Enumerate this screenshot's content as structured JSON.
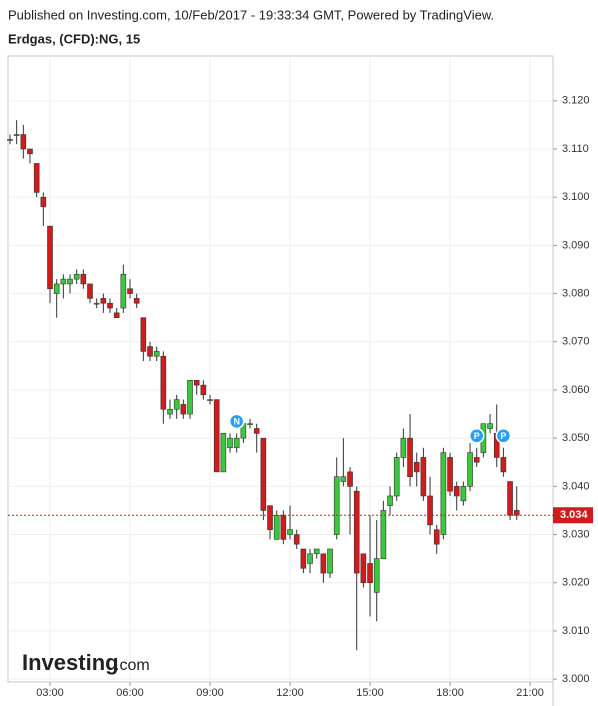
{
  "chart_data": {
    "type": "candlestick",
    "source": "Published on Investing.com, 10/Feb/2017 - 19:33:34 GMT, Powered by TradingView.",
    "title": "Erdgas, (CFD):NG, 15",
    "watermark": [
      "Investing",
      ".com"
    ],
    "up_color": "#3cc83c",
    "down_color": "#d01c1c",
    "grid": true,
    "x": [
      1.5,
      1.75,
      2.0,
      2.25,
      2.5,
      2.75,
      3.0,
      3.25,
      3.5,
      3.75,
      4.0,
      4.25,
      4.5,
      4.75,
      5.0,
      5.25,
      5.5,
      5.75,
      6.0,
      6.25,
      6.5,
      6.75,
      7.0,
      7.25,
      7.5,
      7.75,
      8.0,
      8.25,
      8.5,
      8.75,
      9.0,
      9.25,
      9.5,
      9.75,
      10.0,
      10.25,
      10.5,
      10.75,
      11.0,
      11.25,
      11.5,
      11.75,
      12.0,
      12.25,
      12.5,
      12.75,
      13.0,
      13.25,
      13.5,
      13.75,
      14.0,
      14.25,
      14.5,
      14.75,
      15.0,
      15.25,
      15.5,
      15.75,
      16.0,
      16.25,
      16.5,
      16.75,
      17.0,
      17.25,
      17.5,
      17.75,
      18.0,
      18.25,
      18.5,
      18.75,
      19.0,
      19.25,
      19.5,
      19.75,
      20.0,
      20.25,
      20.5
    ],
    "open": [
      3.112,
      3.113,
      3.113,
      3.11,
      3.107,
      3.1,
      3.094,
      3.08,
      3.082,
      3.082,
      3.083,
      3.084,
      3.082,
      3.078,
      3.079,
      3.078,
      3.076,
      3.077,
      3.081,
      3.079,
      3.075,
      3.069,
      3.067,
      3.067,
      3.055,
      3.056,
      3.057,
      3.055,
      3.062,
      3.061,
      3.058,
      3.058,
      3.043,
      3.048,
      3.048,
      3.05,
      3.053,
      3.052,
      3.05,
      3.036,
      3.029,
      3.034,
      3.03,
      3.03,
      3.027,
      3.024,
      3.026,
      3.026,
      3.022,
      3.03,
      3.041,
      3.043,
      3.039,
      3.026,
      3.024,
      3.018,
      3.025,
      3.036,
      3.038,
      3.046,
      3.05,
      3.045,
      3.046,
      3.038,
      3.031,
      3.03,
      3.046,
      3.04,
      3.037,
      3.04,
      3.046,
      3.047,
      3.052,
      3.051,
      3.046,
      3.041,
      3.035
    ],
    "high": [
      3.113,
      3.116,
      3.115,
      3.11,
      3.107,
      3.101,
      3.094,
      3.083,
      3.084,
      3.084,
      3.085,
      3.085,
      3.082,
      3.079,
      3.08,
      3.079,
      3.077,
      3.086,
      3.083,
      3.08,
      3.075,
      3.07,
      3.069,
      3.068,
      3.058,
      3.059,
      3.058,
      3.062,
      3.062,
      3.062,
      3.059,
      3.058,
      3.051,
      3.051,
      3.051,
      3.054,
      3.054,
      3.053,
      3.05,
      3.036,
      3.035,
      3.035,
      3.036,
      3.031,
      3.027,
      3.027,
      3.027,
      3.026,
      3.027,
      3.046,
      3.05,
      3.044,
      3.04,
      3.026,
      3.034,
      3.033,
      3.037,
      3.04,
      3.047,
      3.052,
      3.055,
      3.047,
      3.048,
      3.042,
      3.032,
      3.048,
      3.047,
      3.041,
      3.041,
      3.049,
      3.048,
      3.053,
      3.055,
      3.057,
      3.048,
      3.041,
      3.04
    ],
    "low": [
      3.111,
      3.111,
      3.108,
      3.107,
      3.1,
      3.094,
      3.078,
      3.075,
      3.079,
      3.08,
      3.082,
      3.081,
      3.078,
      3.077,
      3.076,
      3.076,
      3.075,
      3.076,
      3.079,
      3.077,
      3.066,
      3.066,
      3.066,
      3.053,
      3.054,
      3.054,
      3.054,
      3.054,
      3.059,
      3.058,
      3.057,
      3.043,
      3.043,
      3.047,
      3.047,
      3.049,
      3.052,
      3.047,
      3.033,
      3.029,
      3.029,
      3.028,
      3.029,
      3.027,
      3.022,
      3.022,
      3.025,
      3.02,
      3.021,
      3.029,
      3.04,
      3.03,
      3.006,
      3.019,
      3.013,
      3.012,
      3.025,
      3.034,
      3.037,
      3.044,
      3.04,
      3.04,
      3.037,
      3.03,
      3.026,
      3.029,
      3.038,
      3.035,
      3.036,
      3.039,
      3.044,
      3.046,
      3.051,
      3.044,
      3.042,
      3.033,
      3.033
    ],
    "close": [
      3.112,
      3.113,
      3.11,
      3.109,
      3.101,
      3.098,
      3.081,
      3.082,
      3.083,
      3.083,
      3.084,
      3.082,
      3.079,
      3.078,
      3.078,
      3.077,
      3.075,
      3.084,
      3.08,
      3.078,
      3.068,
      3.067,
      3.068,
      3.056,
      3.056,
      3.058,
      3.055,
      3.062,
      3.061,
      3.059,
      3.058,
      3.043,
      3.051,
      3.05,
      3.05,
      3.053,
      3.053,
      3.051,
      3.035,
      3.031,
      3.034,
      3.029,
      3.031,
      3.028,
      3.023,
      3.026,
      3.027,
      3.022,
      3.027,
      3.042,
      3.042,
      3.04,
      3.022,
      3.02,
      3.02,
      3.025,
      3.035,
      3.038,
      3.046,
      3.05,
      3.042,
      3.043,
      3.038,
      3.032,
      3.028,
      3.047,
      3.039,
      3.038,
      3.04,
      3.047,
      3.045,
      3.053,
      3.053,
      3.046,
      3.043,
      3.034,
      3.034
    ],
    "last_price": 3.034,
    "markers": [
      {
        "x": 10.0,
        "label": "N"
      },
      {
        "x": 19.0,
        "label": "P"
      },
      {
        "x": 20.0,
        "label": "P"
      }
    ],
    "xlim": [
      1.425,
      21.86
    ],
    "xticks": [
      {
        "value": 3,
        "label": "03:00"
      },
      {
        "value": 6,
        "label": "06:00"
      },
      {
        "value": 9,
        "label": "09:00"
      },
      {
        "value": 12,
        "label": "12:00"
      },
      {
        "value": 15,
        "label": "15:00"
      },
      {
        "value": 18,
        "label": "18:00"
      },
      {
        "value": 21,
        "label": "21:00"
      }
    ],
    "ylim": [
      2.9994,
      3.1293
    ],
    "yticks": [
      {
        "value": 3.0,
        "label": "3.000"
      },
      {
        "value": 3.01,
        "label": "3.010"
      },
      {
        "value": 3.02,
        "label": "3.020"
      },
      {
        "value": 3.03,
        "label": "3.030"
      },
      {
        "value": 3.04,
        "label": "3.040"
      },
      {
        "value": 3.05,
        "label": "3.050"
      },
      {
        "value": 3.06,
        "label": "3.060"
      },
      {
        "value": 3.07,
        "label": "3.070"
      },
      {
        "value": 3.08,
        "label": "3.080"
      },
      {
        "value": 3.09,
        "label": "3.090"
      },
      {
        "value": 3.1,
        "label": "3.100"
      },
      {
        "value": 3.11,
        "label": "3.110"
      },
      {
        "value": 3.12,
        "label": "3.120"
      }
    ]
  }
}
